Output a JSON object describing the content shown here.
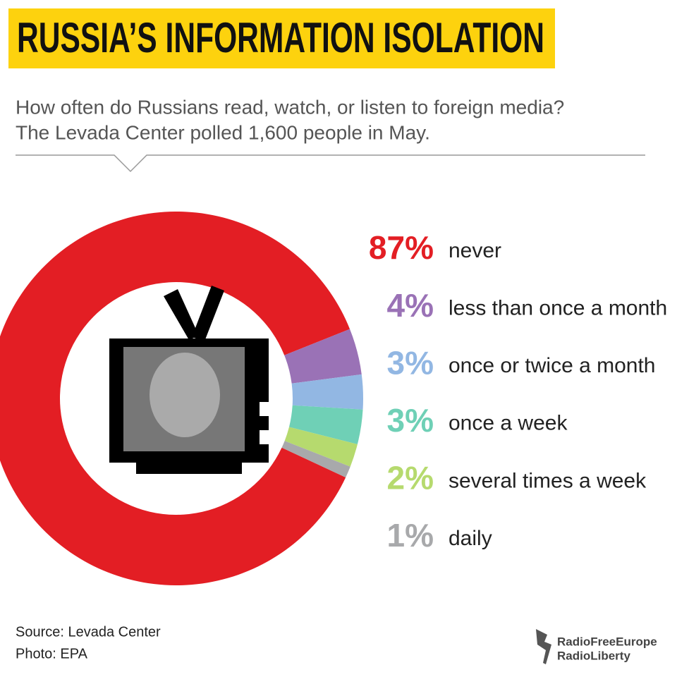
{
  "chart_data": {
    "type": "donut",
    "title": "RUSSIA’S INFORMATION ISOLATION",
    "subtitle": [
      "How often do Russians read, watch, or listen to foreign media?",
      "The Levada Center polled 1,600 people in May."
    ],
    "categories": [
      "never",
      "less than once a month",
      "once or twice a month",
      "once a week",
      "several times a week",
      "daily"
    ],
    "values": [
      87,
      4,
      3,
      3,
      2,
      1
    ],
    "value_labels": [
      "87%",
      "4%",
      "3%",
      "3%",
      "2%",
      "1%"
    ],
    "colors": [
      "#e31e24",
      "#9a72b6",
      "#92b7e3",
      "#6fd0b6",
      "#b6da6e",
      "#a8a9ab"
    ],
    "source": "Source: Levada Center",
    "photo_credit": "Photo: EPA",
    "publisher": [
      "RadioFreeEurope",
      "RadioLiberty"
    ]
  }
}
